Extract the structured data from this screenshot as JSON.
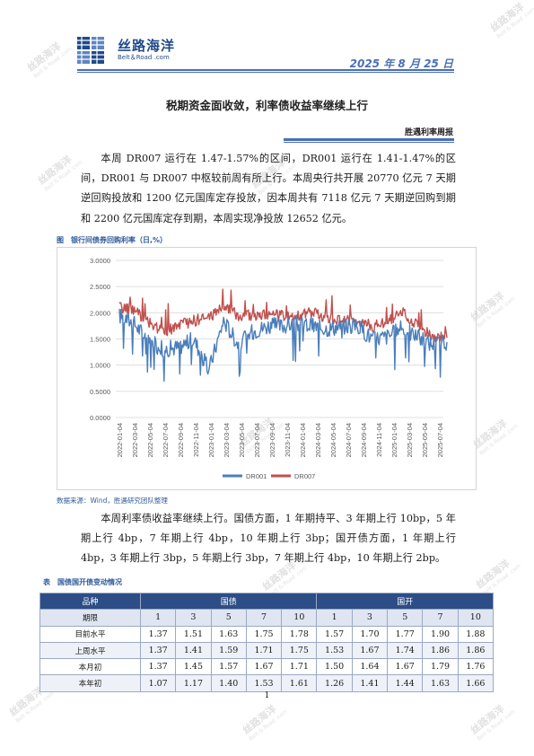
{
  "header": {
    "logo_cn": "丝路海洋",
    "logo_en": "Belt＆Road .com",
    "date": "2025 年 8 月 25 日"
  },
  "title": "税期资金面收敛，利率债收益率继续上行",
  "report_name": "胜遇利率周报",
  "paragraph1": "本周 DR007 运行在 1.47-1.57%的区间，DR001 运行在 1.41-1.47%的区间，DR001 与 DR007 中枢较前周有所上行。本周央行共开展 20770 亿元 7 天期逆回购投放和 1200 亿元国库定存投放，因本周共有 7118 亿元 7 天期逆回购到期和 2200 亿元国库定存到期，本周实现净投放 12652 亿元。",
  "figure": {
    "caption": "图　银行间债券回购利率（日,%）",
    "source": "数据来源：Wind，胜遇研究团队整理"
  },
  "paragraph2": "本周利率债收益率继续上行。国债方面，1 年期持平、3 年期上行 10bp，5 年期上行 4bp，7 年期上行 4bp，10 年期上行 3bp；国开债方面，1 年期上行 4bp，3 年期上行 3bp，5 年期上行 3bp，7 年期上行 4bp，10 年期上行 2bp。",
  "table": {
    "caption": "表　国债国开债变动情况",
    "col_variety": "品种",
    "group1": "国债",
    "group2": "国开",
    "col_term": "期限",
    "terms": [
      "1",
      "3",
      "5",
      "7",
      "10",
      "1",
      "3",
      "5",
      "7",
      "10"
    ],
    "rows": [
      {
        "label": "目前水平",
        "values": [
          "1.37",
          "1.51",
          "1.63",
          "1.75",
          "1.78",
          "1.57",
          "1.70",
          "1.77",
          "1.90",
          "1.88"
        ]
      },
      {
        "label": "上周水平",
        "values": [
          "1.37",
          "1.41",
          "1.59",
          "1.71",
          "1.75",
          "1.53",
          "1.67",
          "1.74",
          "1.86",
          "1.86"
        ]
      },
      {
        "label": "本月初",
        "values": [
          "1.37",
          "1.45",
          "1.57",
          "1.67",
          "1.71",
          "1.50",
          "1.64",
          "1.67",
          "1.79",
          "1.76"
        ]
      },
      {
        "label": "本年初",
        "values": [
          "1.07",
          "1.17",
          "1.40",
          "1.53",
          "1.61",
          "1.26",
          "1.41",
          "1.44",
          "1.63",
          "1.66"
        ]
      }
    ]
  },
  "page_number": "1",
  "watermark": {
    "cn": "丝路海洋",
    "en": "Belt & Road .com"
  },
  "colors": {
    "dr001": "#4a7ebb",
    "dr007": "#c0504d",
    "accent": "#2c4d86"
  },
  "chart_data": {
    "type": "line",
    "x": [
      "2022-01-04",
      "2022-03-04",
      "2022-05-04",
      "2022-07-04",
      "2022-09-04",
      "2022-11-04",
      "2023-01-04",
      "2023-03-04",
      "2023-05-04",
      "2023-07-04",
      "2023-09-04",
      "2023-11-04",
      "2024-01-04",
      "2024-03-04",
      "2024-05-04",
      "2024-07-04",
      "2024-09-04",
      "2024-11-04",
      "2025-01-04",
      "2025-03-04",
      "2025-05-04",
      "2025-07-04",
      "2025-08-22"
    ],
    "series": [
      {
        "name": "DR001",
        "values": [
          1.95,
          1.8,
          1.45,
          1.3,
          1.35,
          1.5,
          0.9,
          1.85,
          1.4,
          1.65,
          1.75,
          1.75,
          1.8,
          1.75,
          1.7,
          1.75,
          1.75,
          1.5,
          1.55,
          1.7,
          1.55,
          1.4,
          1.44
        ]
      },
      {
        "name": "DR007",
        "values": [
          2.1,
          2.05,
          1.8,
          1.65,
          1.75,
          1.85,
          1.9,
          2.15,
          1.95,
          1.95,
          1.95,
          1.95,
          1.95,
          2.0,
          1.9,
          1.85,
          1.85,
          1.75,
          1.85,
          2.0,
          1.75,
          1.55,
          1.52
        ]
      }
    ],
    "y_ticks": [
      "3.0000",
      "2.5000",
      "2.0000",
      "1.5000",
      "1.0000",
      "0.5000",
      "0.0000"
    ],
    "x_ticks": [
      "2022-01-04",
      "2022-03-04",
      "2022-05-04",
      "2022-07-04",
      "2022-09-04",
      "2022-11-04",
      "2023-01-04",
      "2023-03-04",
      "2023-05-04",
      "2023-07-04",
      "2023-09-04",
      "2023-11-04",
      "2024-01-04",
      "2024-03-04",
      "2024-05-04",
      "2024-07-04",
      "2024-09-04",
      "2024-11-04",
      "2025-01-04",
      "2025-03-04",
      "2025-05-04",
      "2025-07-04"
    ],
    "ylim": [
      0,
      3
    ],
    "grid": true,
    "legend": "bottom"
  }
}
